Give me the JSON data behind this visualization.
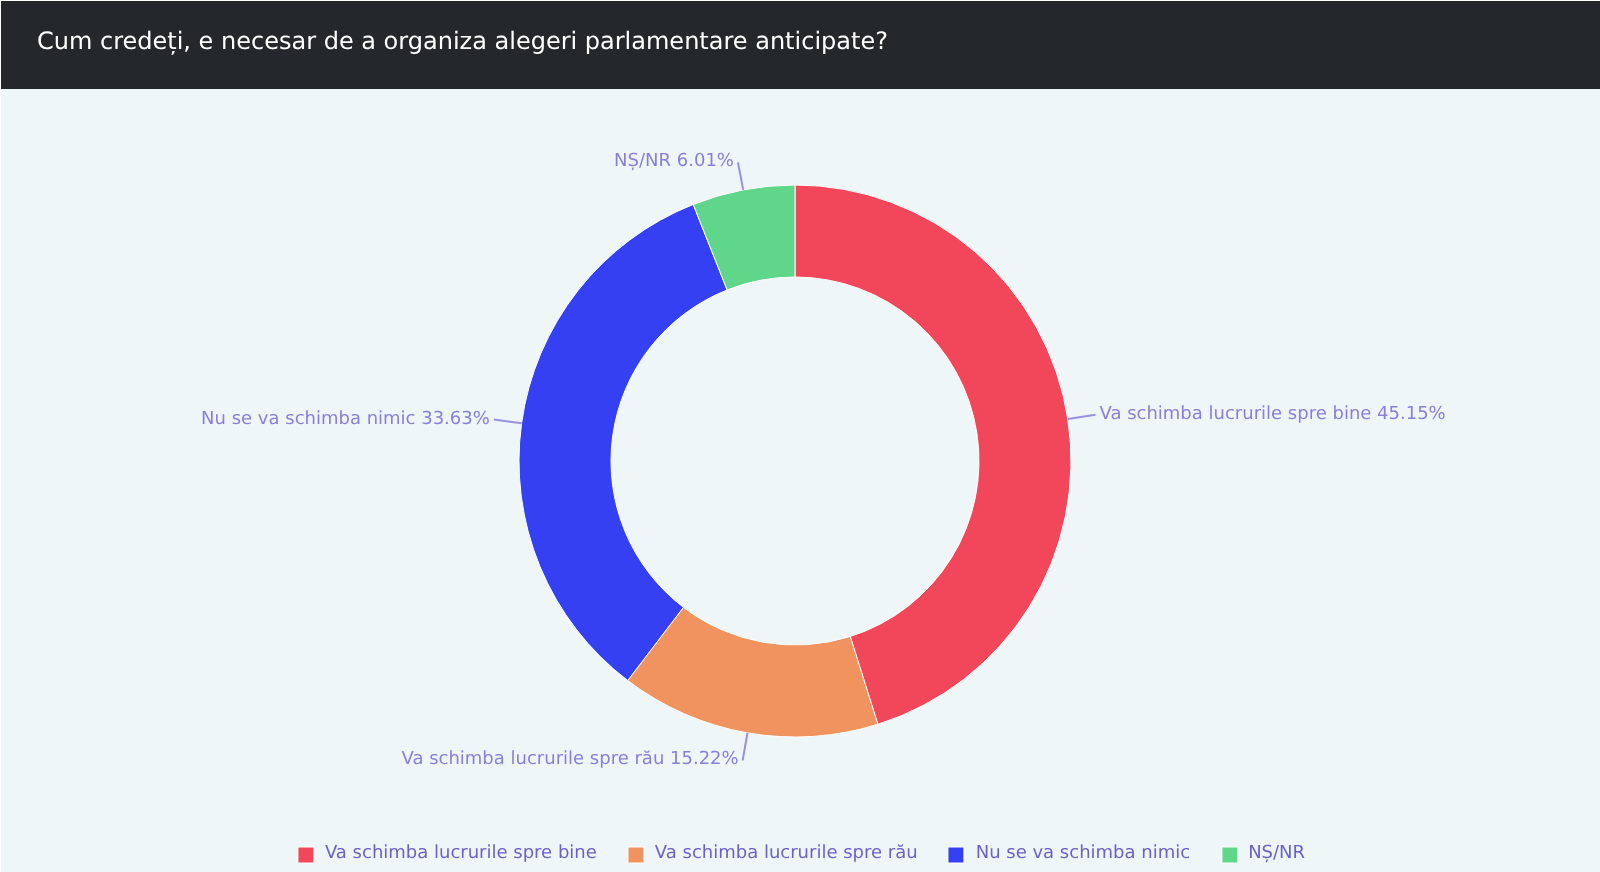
{
  "chart_data": {
    "type": "donut",
    "title": "Cum credeți, e necesar de a organiza alegeri parlamentare anticipate?",
    "categories": [
      "Va schimba lucrurile spre bine",
      "Va schimba lucrurile spre rău",
      "Nu se va schimba nimic",
      "NȘ/NR"
    ],
    "values": [
      45.15,
      15.22,
      33.63,
      6.01
    ],
    "colors": [
      "#f2465a",
      "#f0935e",
      "#3540f2",
      "#5fd68a"
    ],
    "value_labels": [
      "45.15%",
      "15.22%",
      "33.63%",
      "6.01%"
    ],
    "legend": "bottom"
  }
}
